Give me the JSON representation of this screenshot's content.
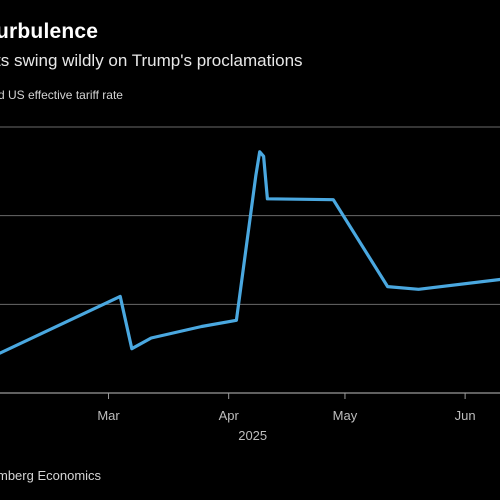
{
  "title": "urbulence",
  "subtitle": "ts swing wildly on Trump's proclamations",
  "series_label": "d US effective tariff rate",
  "source": "mberg Economics",
  "colors": {
    "background": "#000000",
    "line": "#4aa8e0",
    "grid": "#6a6a6a",
    "text": "#ffffff",
    "muted": "#bdbdbd"
  },
  "chart_data": {
    "type": "line",
    "title": "urbulence",
    "subtitle": "ts swing wildly on Trump's proclamations",
    "ylabel": "d US effective tariff rate",
    "x_tick_labels": [
      "Mar",
      "Apr",
      "May",
      "Jun"
    ],
    "x_year_label": "2025",
    "y_tick_labels": [],
    "grid": "horizontal",
    "ylim": [
      0,
      30
    ],
    "x_domain": [
      "2025-02-01",
      "2025-06-10"
    ],
    "series": [
      {
        "values": [
          {
            "x": "2025-02-01",
            "y": 4.5
          },
          {
            "x": "2025-03-04",
            "y": 10.9
          },
          {
            "x": "2025-03-07",
            "y": 5.0
          },
          {
            "x": "2025-03-12",
            "y": 6.2
          },
          {
            "x": "2025-03-25",
            "y": 7.5
          },
          {
            "x": "2025-04-03",
            "y": 8.2
          },
          {
            "x": "2025-04-08",
            "y": 24.5
          },
          {
            "x": "2025-04-09",
            "y": 27.2
          },
          {
            "x": "2025-04-10",
            "y": 26.7
          },
          {
            "x": "2025-04-11",
            "y": 21.9
          },
          {
            "x": "2025-04-28",
            "y": 21.8
          },
          {
            "x": "2025-05-12",
            "y": 12.0
          },
          {
            "x": "2025-05-20",
            "y": 11.7
          },
          {
            "x": "2025-06-10",
            "y": 12.8
          }
        ]
      }
    ]
  }
}
